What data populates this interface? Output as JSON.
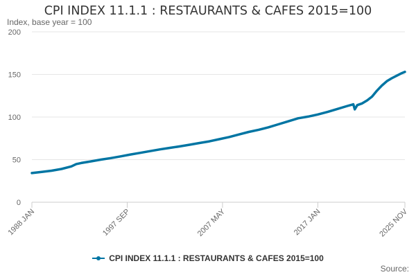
{
  "title": "CPI INDEX 11.1.1 : RESTAURANTS & CAFES 2015=100",
  "legend_label": "CPI INDEX 11.1.1 : RESTAURANTS & CAFES 2015=100",
  "source_label": "Source:",
  "colors": {
    "series": "#0075a3",
    "grid": "#e6e6e6",
    "axis": "#cccccc",
    "text": "#666666"
  },
  "chart_data": {
    "type": "line",
    "title": "CPI INDEX 11.1.1 : RESTAURANTS & CAFES 2015=100",
    "ylabel": "Index, base year = 100",
    "xlabel": "",
    "ylim": [
      0,
      200
    ],
    "yticks": [
      0,
      50,
      100,
      150,
      200
    ],
    "grid": true,
    "legend_position": "bottom",
    "x_range": [
      "1988 JAN",
      "2025 NOV"
    ],
    "x_tick_labels": [
      "1988 JAN",
      "1997 SEP",
      "2007 MAY",
      "2017 JAN",
      "2025 NOV"
    ],
    "x_ticks_decimal_year": [
      1988.0,
      1997.667,
      2007.333,
      2017.0,
      2025.833
    ],
    "series": [
      {
        "name": "CPI INDEX 11.1.1 : RESTAURANTS & CAFES 2015=100",
        "points": [
          [
            1988.0,
            34.2
          ],
          [
            1989.0,
            35.5
          ],
          [
            1990.0,
            37.0
          ],
          [
            1991.0,
            39.0
          ],
          [
            1992.0,
            42.0
          ],
          [
            1992.5,
            44.8
          ],
          [
            1993.0,
            46.0
          ],
          [
            1994.0,
            48.0
          ],
          [
            1995.0,
            50.0
          ],
          [
            1996.0,
            51.8
          ],
          [
            1997.0,
            53.8
          ],
          [
            1998.0,
            56.0
          ],
          [
            1999.0,
            58.0
          ],
          [
            2000.0,
            60.0
          ],
          [
            2001.0,
            62.0
          ],
          [
            2002.0,
            63.8
          ],
          [
            2003.0,
            65.5
          ],
          [
            2004.0,
            67.5
          ],
          [
            2005.0,
            69.5
          ],
          [
            2006.0,
            71.5
          ],
          [
            2007.0,
            74.0
          ],
          [
            2008.0,
            76.5
          ],
          [
            2009.0,
            79.5
          ],
          [
            2010.0,
            82.5
          ],
          [
            2011.0,
            85.0
          ],
          [
            2012.0,
            88.0
          ],
          [
            2013.0,
            91.5
          ],
          [
            2014.0,
            95.0
          ],
          [
            2015.0,
            98.5
          ],
          [
            2016.0,
            100.5
          ],
          [
            2017.0,
            103.0
          ],
          [
            2018.0,
            106.0
          ],
          [
            2019.0,
            109.5
          ],
          [
            2020.0,
            113.0
          ],
          [
            2020.6,
            115.0
          ],
          [
            2020.75,
            109.0
          ],
          [
            2021.0,
            114.0
          ],
          [
            2021.5,
            116.0
          ],
          [
            2022.0,
            119.5
          ],
          [
            2022.5,
            124.0
          ],
          [
            2023.0,
            131.0
          ],
          [
            2023.5,
            137.0
          ],
          [
            2024.0,
            142.0
          ],
          [
            2024.5,
            145.5
          ],
          [
            2025.0,
            148.5
          ],
          [
            2025.5,
            151.5
          ],
          [
            2025.833,
            153.0
          ]
        ]
      }
    ]
  }
}
